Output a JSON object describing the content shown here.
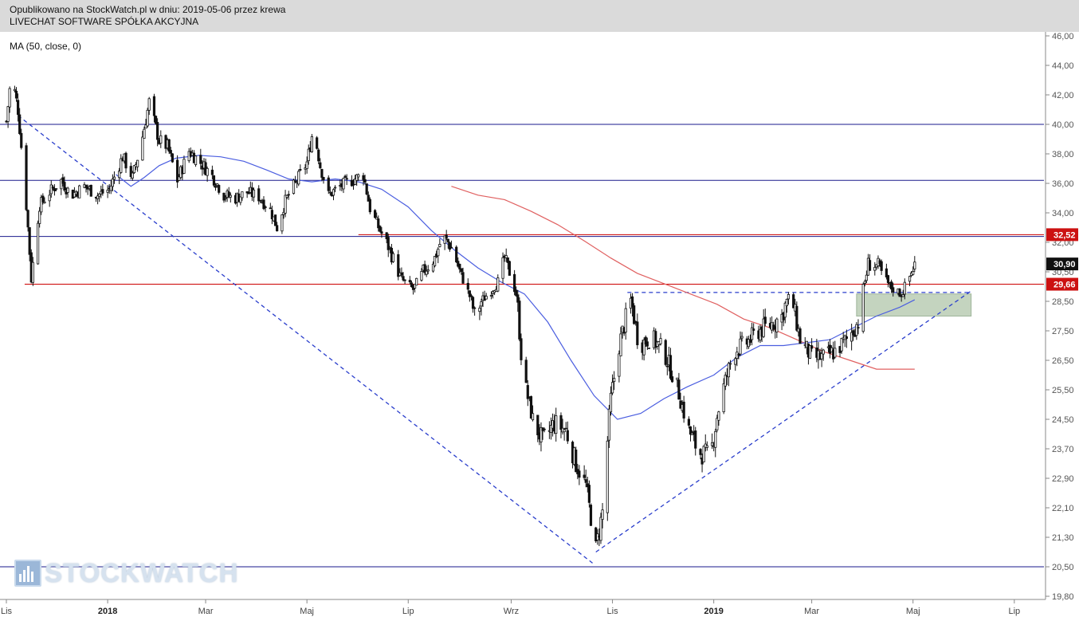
{
  "header": {
    "published_line": "Opublikowano na StockWatch.pl w dniu: 2019-05-06 przez krewa",
    "company_line": "LIVECHAT SOFTWARE SPÓŁKA AKCYJNA"
  },
  "indicator_label": "MA (50, close, 0)",
  "watermark": "STOCKWATCH",
  "chart_data": {
    "type": "candlestick",
    "title": "",
    "xlabel": "",
    "ylabel": "",
    "ylim": [
      19.8,
      46.0
    ],
    "y_ticks": [
      "46,00",
      "44,00",
      "42,00",
      "40,00",
      "38,00",
      "36,00",
      "34,00",
      "32,00",
      "30,50",
      "28,50",
      "27,50",
      "26,50",
      "25,50",
      "24,50",
      "23,70",
      "22,90",
      "22,10",
      "21,30",
      "20,50",
      "19,80"
    ],
    "x_ticks": [
      {
        "label": "Lis",
        "bold": false
      },
      {
        "label": "2018",
        "bold": true
      },
      {
        "label": "Mar",
        "bold": false
      },
      {
        "label": "Maj",
        "bold": false
      },
      {
        "label": "Lip",
        "bold": false
      },
      {
        "label": "Wrz",
        "bold": false
      },
      {
        "label": "Lis",
        "bold": false
      },
      {
        "label": "2019",
        "bold": true
      },
      {
        "label": "Mar",
        "bold": false
      },
      {
        "label": "Maj",
        "bold": false
      },
      {
        "label": "Lip",
        "bold": false
      }
    ],
    "x_range": [
      "2017-11-01",
      "2019-07-15"
    ],
    "grid": false,
    "price_path": [
      [
        "2017-11-01",
        40.2
      ],
      [
        "2017-11-04",
        43.4
      ],
      [
        "2017-11-08",
        41.0
      ],
      [
        "2017-11-12",
        36.0
      ],
      [
        "2017-11-16",
        30.0
      ],
      [
        "2017-11-21",
        34.5
      ],
      [
        "2017-11-27",
        35.4
      ],
      [
        "2017-12-04",
        36.2
      ],
      [
        "2017-12-10",
        35.2
      ],
      [
        "2017-12-18",
        35.8
      ],
      [
        "2017-12-26",
        35.2
      ],
      [
        "2018-01-02",
        35.6
      ],
      [
        "2018-01-10",
        37.8
      ],
      [
        "2018-01-16",
        36.4
      ],
      [
        "2018-01-21",
        38.6
      ],
      [
        "2018-01-26",
        41.5
      ],
      [
        "2018-02-01",
        38.9
      ],
      [
        "2018-02-06",
        38.5
      ],
      [
        "2018-02-12",
        36.2
      ],
      [
        "2018-02-19",
        38.2
      ],
      [
        "2018-02-26",
        37.4
      ],
      [
        "2018-03-05",
        36.5
      ],
      [
        "2018-03-12",
        35.2
      ],
      [
        "2018-03-19",
        35.0
      ],
      [
        "2018-03-26",
        35.4
      ],
      [
        "2018-04-02",
        35.1
      ],
      [
        "2018-04-09",
        34.2
      ],
      [
        "2018-04-13",
        33.0
      ],
      [
        "2018-04-18",
        34.8
      ],
      [
        "2018-04-25",
        36.2
      ],
      [
        "2018-05-01",
        37.4
      ],
      [
        "2018-05-05",
        39.8
      ],
      [
        "2018-05-09",
        37.2
      ],
      [
        "2018-05-14",
        35.2
      ],
      [
        "2018-05-21",
        35.8
      ],
      [
        "2018-05-28",
        36.2
      ],
      [
        "2018-06-04",
        36.6
      ],
      [
        "2018-06-08",
        34.3
      ],
      [
        "2018-06-14",
        32.8
      ],
      [
        "2018-06-20",
        31.6
      ],
      [
        "2018-06-27",
        30.0
      ],
      [
        "2018-07-04",
        29.3
      ],
      [
        "2018-07-10",
        30.5
      ],
      [
        "2018-07-17",
        31.2
      ],
      [
        "2018-07-22",
        32.4
      ],
      [
        "2018-07-28",
        31.6
      ],
      [
        "2018-08-03",
        30.0
      ],
      [
        "2018-08-10",
        28.0
      ],
      [
        "2018-08-18",
        29.0
      ],
      [
        "2018-08-24",
        29.8
      ],
      [
        "2018-08-28",
        31.2
      ],
      [
        "2018-09-01",
        30.2
      ],
      [
        "2018-09-04",
        29.0
      ],
      [
        "2018-09-08",
        26.0
      ],
      [
        "2018-09-14",
        24.5
      ],
      [
        "2018-09-20",
        23.9
      ],
      [
        "2018-09-27",
        24.4
      ],
      [
        "2018-10-04",
        24.2
      ],
      [
        "2018-10-10",
        23.3
      ],
      [
        "2018-10-16",
        22.7
      ],
      [
        "2018-10-22",
        21.0
      ],
      [
        "2018-10-26",
        22.0
      ],
      [
        "2018-10-31",
        25.2
      ],
      [
        "2018-11-05",
        27.0
      ],
      [
        "2018-11-12",
        28.6
      ],
      [
        "2018-11-17",
        27.0
      ],
      [
        "2018-11-24",
        27.3
      ],
      [
        "2018-12-02",
        26.8
      ],
      [
        "2018-12-10",
        25.6
      ],
      [
        "2018-12-16",
        24.3
      ],
      [
        "2018-12-23",
        23.6
      ],
      [
        "2018-12-30",
        23.5
      ],
      [
        "2019-01-06",
        25.4
      ],
      [
        "2019-01-13",
        26.8
      ],
      [
        "2019-01-21",
        27.1
      ],
      [
        "2019-01-28",
        27.5
      ],
      [
        "2019-02-04",
        27.7
      ],
      [
        "2019-02-11",
        28.0
      ],
      [
        "2019-02-16",
        28.9
      ],
      [
        "2019-02-22",
        27.2
      ],
      [
        "2019-03-01",
        26.6
      ],
      [
        "2019-03-08",
        26.6
      ],
      [
        "2019-03-15",
        26.8
      ],
      [
        "2019-03-22",
        27.2
      ],
      [
        "2019-03-29",
        27.8
      ],
      [
        "2019-04-04",
        30.9
      ],
      [
        "2019-04-10",
        30.8
      ],
      [
        "2019-04-17",
        29.5
      ],
      [
        "2019-04-24",
        29.0
      ],
      [
        "2019-05-02",
        30.9
      ]
    ],
    "ma50_path": [
      [
        "2018-01-06",
        36.6
      ],
      [
        "2018-01-15",
        35.8
      ],
      [
        "2018-01-23",
        36.4
      ],
      [
        "2018-02-01",
        37.2
      ],
      [
        "2018-02-11",
        37.7
      ],
      [
        "2018-02-25",
        37.9
      ],
      [
        "2018-03-10",
        37.8
      ],
      [
        "2018-03-24",
        37.5
      ],
      [
        "2018-04-07",
        36.9
      ],
      [
        "2018-04-20",
        36.3
      ],
      [
        "2018-05-04",
        36.1
      ],
      [
        "2018-05-18",
        36.3
      ],
      [
        "2018-06-01",
        36.1
      ],
      [
        "2018-06-15",
        35.6
      ],
      [
        "2018-07-01",
        34.4
      ],
      [
        "2018-07-15",
        32.8
      ],
      [
        "2018-07-29",
        31.6
      ],
      [
        "2018-08-12",
        30.7
      ],
      [
        "2018-08-26",
        29.8
      ],
      [
        "2018-09-09",
        29.0
      ],
      [
        "2018-09-23",
        27.8
      ],
      [
        "2018-10-07",
        26.5
      ],
      [
        "2018-10-21",
        25.3
      ],
      [
        "2018-11-04",
        24.5
      ],
      [
        "2018-11-18",
        24.7
      ],
      [
        "2018-12-02",
        25.2
      ],
      [
        "2018-12-16",
        25.6
      ],
      [
        "2019-01-01",
        26.0
      ],
      [
        "2019-01-15",
        26.6
      ],
      [
        "2019-01-29",
        27.0
      ],
      [
        "2019-02-12",
        27.0
      ],
      [
        "2019-02-26",
        27.1
      ],
      [
        "2019-03-12",
        27.2
      ],
      [
        "2019-03-26",
        27.6
      ],
      [
        "2019-04-09",
        28.0
      ],
      [
        "2019-04-23",
        28.3
      ],
      [
        "2019-05-02",
        28.6
      ]
    ],
    "ma200_path": [
      [
        "2018-07-27",
        35.8
      ],
      [
        "2018-08-12",
        35.2
      ],
      [
        "2018-08-28",
        34.9
      ],
      [
        "2018-09-13",
        34.1
      ],
      [
        "2018-09-29",
        33.2
      ],
      [
        "2018-10-15",
        32.1
      ],
      [
        "2018-10-31",
        31.2
      ],
      [
        "2018-11-16",
        30.4
      ],
      [
        "2018-12-02",
        29.7
      ],
      [
        "2018-12-18",
        29.0
      ],
      [
        "2019-01-03",
        28.4
      ],
      [
        "2019-01-19",
        27.9
      ],
      [
        "2019-02-04",
        27.6
      ],
      [
        "2019-02-20",
        27.2
      ],
      [
        "2019-03-08",
        26.8
      ],
      [
        "2019-03-24",
        26.5
      ],
      [
        "2019-04-09",
        26.2
      ],
      [
        "2019-04-25",
        26.2
      ],
      [
        "2019-05-02",
        26.2
      ]
    ],
    "horizontal_levels": [
      {
        "value": 40.0,
        "color": "#1a1a8c"
      },
      {
        "value": 36.2,
        "color": "#1a1a8c"
      },
      {
        "value": 32.4,
        "color": "#1a1a8c"
      },
      {
        "value": 32.52,
        "color": "#cc0000",
        "from": "2018-06-01"
      },
      {
        "value": 29.66,
        "color": "#cc0000",
        "from": "2017-11-12"
      },
      {
        "value": 20.5,
        "color": "#1a1a8c"
      }
    ],
    "trend_lines": [
      {
        "from": [
          "2017-11-08",
          40.6
        ],
        "to": [
          "2018-10-20",
          20.6
        ],
        "color": "#2a3ecc"
      },
      {
        "from": [
          "2018-10-22",
          20.9
        ],
        "to": [
          "2019-06-05",
          29.2
        ],
        "color": "#2a3ecc"
      },
      {
        "from": [
          "2018-11-10",
          29.1
        ],
        "to": [
          "2019-06-05",
          29.1
        ],
        "color": "#2a3ecc"
      }
    ],
    "highlight_zone": {
      "x0": "2019-03-28",
      "x1": "2019-06-05",
      "y0": 28.0,
      "y1": 29.0,
      "color": "#c4d4bf"
    },
    "price_tags": [
      {
        "label": "32,52",
        "value": 32.52,
        "color": "#cc1111"
      },
      {
        "label": "30,90",
        "value": 30.9,
        "color": "#111111"
      },
      {
        "label": "29,66",
        "value": 29.66,
        "color": "#cc1111"
      }
    ],
    "colors": {
      "candle": "#111111",
      "ma50": "#4b5ee0",
      "ma200": "#e06060",
      "axis": "#888888"
    }
  }
}
